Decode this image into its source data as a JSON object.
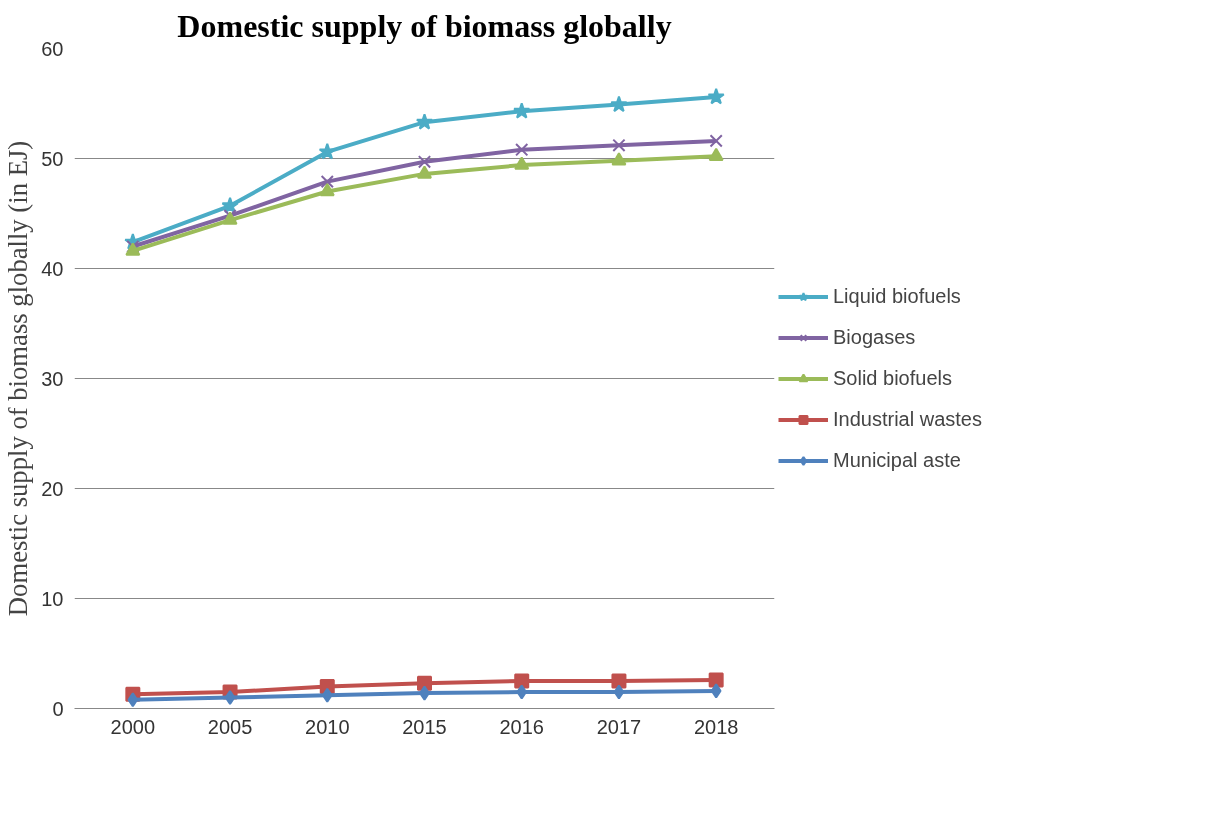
{
  "chart_data": {
    "type": "line",
    "title": "Domestic supply of biomass globally",
    "ylabel": "Domestic supply of biomass globally (in EJ)",
    "categories": [
      "2000",
      "2005",
      "2010",
      "2015",
      "2016",
      "2017",
      "2018"
    ],
    "series": [
      {
        "name": "Liquid biofuels",
        "color": "#4bacc6",
        "marker": "star",
        "values": [
          42.4,
          45.7,
          50.6,
          53.3,
          54.3,
          54.9,
          55.6
        ]
      },
      {
        "name": "Biogases",
        "color": "#8064a2",
        "marker": "cross",
        "values": [
          42.0,
          44.8,
          47.9,
          49.7,
          50.8,
          51.2,
          51.6
        ]
      },
      {
        "name": "Solid biofuels",
        "color": "#9bbb59",
        "marker": "triangle",
        "values": [
          41.6,
          44.4,
          47.0,
          48.6,
          49.4,
          49.8,
          50.2
        ]
      },
      {
        "name": "Industrial wastes",
        "color": "#c0504d",
        "marker": "square",
        "values": [
          1.3,
          1.5,
          2.0,
          2.3,
          2.5,
          2.5,
          2.6
        ]
      },
      {
        "name": "Municipal aste",
        "color": "#4f81bd",
        "marker": "diamond",
        "values": [
          0.8,
          1.0,
          1.2,
          1.4,
          1.5,
          1.5,
          1.6
        ]
      }
    ],
    "ylim": [
      0,
      60
    ],
    "yticks": [
      0,
      10,
      20,
      30,
      40,
      50,
      60
    ],
    "grid": "y",
    "legend": "right",
    "line_style": "solid"
  }
}
